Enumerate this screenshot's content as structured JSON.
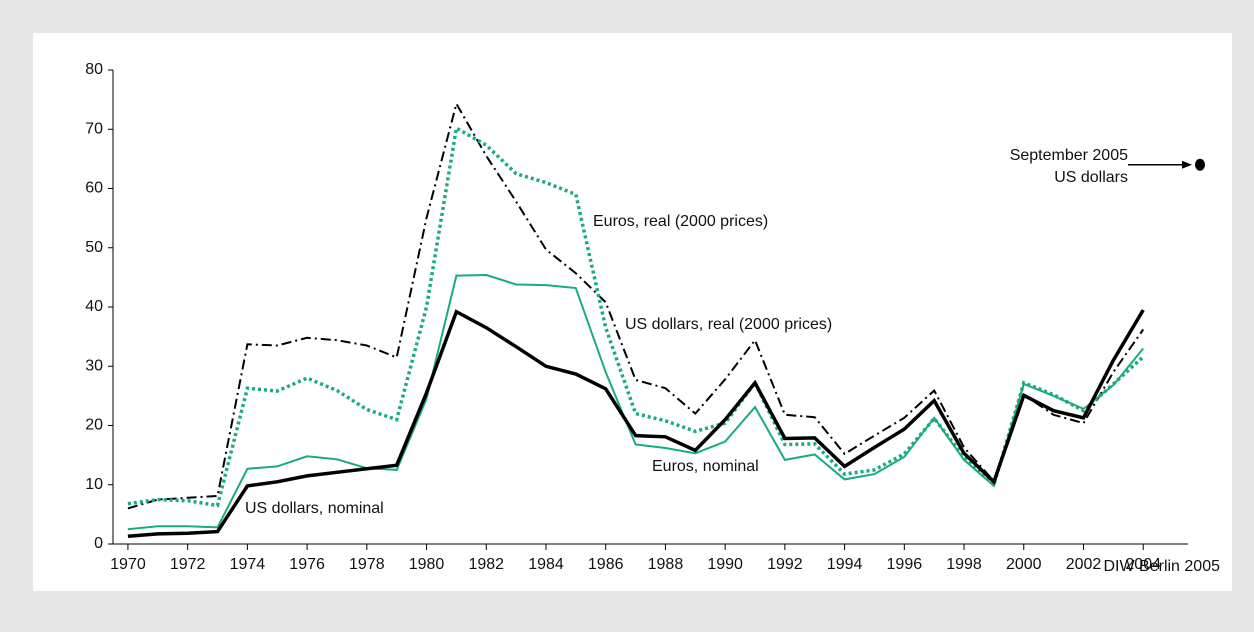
{
  "chart_data": {
    "type": "line",
    "x": [
      1970,
      1971,
      1972,
      1973,
      1974,
      1975,
      1976,
      1977,
      1978,
      1979,
      1980,
      1981,
      1982,
      1983,
      1984,
      1985,
      1986,
      1987,
      1988,
      1989,
      1990,
      1991,
      1992,
      1993,
      1994,
      1995,
      1996,
      1997,
      1998,
      1999,
      2000,
      2001,
      2002,
      2003,
      2004
    ],
    "xlim": [
      1969.5,
      2005.5
    ],
    "xticks": [
      1970,
      1972,
      1974,
      1976,
      1978,
      1980,
      1982,
      1984,
      1986,
      1988,
      1990,
      1992,
      1994,
      1996,
      1998,
      2000,
      2002,
      2004
    ],
    "ylim": [
      0,
      80
    ],
    "yticks": [
      0,
      10,
      20,
      30,
      40,
      50,
      60,
      70,
      80
    ],
    "grid": false,
    "series": [
      {
        "name": "US dollars, real (2000 prices)",
        "color": "#000000",
        "style": "dashdot",
        "width": 2,
        "values": [
          6.0,
          7.5,
          7.8,
          8.1,
          33.7,
          33.5,
          34.8,
          34.4,
          33.5,
          31.5,
          55,
          74.3,
          65.5,
          57.8,
          49.7,
          45.7,
          40.8,
          27.7,
          26.3,
          22.0,
          27.8,
          34.4,
          21.8,
          21.4,
          15.2,
          18.3,
          21.3,
          25.9,
          16.3,
          10.6,
          25.2,
          21.8,
          20.4,
          29.0,
          36.2
        ]
      },
      {
        "name": "Euros, real (2000 prices)",
        "color": "#1aaa82",
        "style": "dotted",
        "width": 3.5,
        "values": [
          6.8,
          7.5,
          7.3,
          6.5,
          26.3,
          25.8,
          28.0,
          25.9,
          22.7,
          21.0,
          40,
          70.2,
          67.3,
          62.5,
          61.0,
          59.0,
          36.5,
          22.0,
          20.8,
          19.0,
          20.4,
          27.2,
          16.8,
          16.9,
          11.8,
          12.5,
          15.2,
          21.2,
          14.7,
          10.0,
          27.2,
          25.2,
          22.5,
          27.0,
          31.6
        ]
      },
      {
        "name": "Euros, nominal",
        "color": "#1aaa82",
        "style": "solid",
        "width": 2,
        "values": [
          2.5,
          3.0,
          3.0,
          2.8,
          12.7,
          13.1,
          14.8,
          14.3,
          12.8,
          12.5,
          24.5,
          45.3,
          45.4,
          43.8,
          43.7,
          43.2,
          29.0,
          16.8,
          16.2,
          15.3,
          17.3,
          23.1,
          14.2,
          15.1,
          10.9,
          11.8,
          14.7,
          21.3,
          14.2,
          9.8,
          27.0,
          25.0,
          22.8,
          26.8,
          33.0
        ]
      },
      {
        "name": "US dollars, nominal",
        "color": "#000000",
        "style": "solid",
        "width": 3.5,
        "values": [
          1.3,
          1.7,
          1.8,
          2.1,
          9.8,
          10.5,
          11.5,
          12.1,
          12.7,
          13.3,
          25.5,
          39.2,
          36.5,
          33.3,
          30.0,
          28.7,
          26.2,
          18.3,
          18.1,
          15.8,
          21.0,
          27.2,
          17.8,
          17.9,
          13.1,
          16.3,
          19.4,
          24.2,
          15.3,
          10.5,
          25.1,
          22.5,
          21.3,
          31.0,
          39.5
        ]
      }
    ],
    "annotation": {
      "text": [
        "September 2005",
        "US dollars"
      ],
      "value": 64
    },
    "source": "DIW Berlin 2005"
  }
}
